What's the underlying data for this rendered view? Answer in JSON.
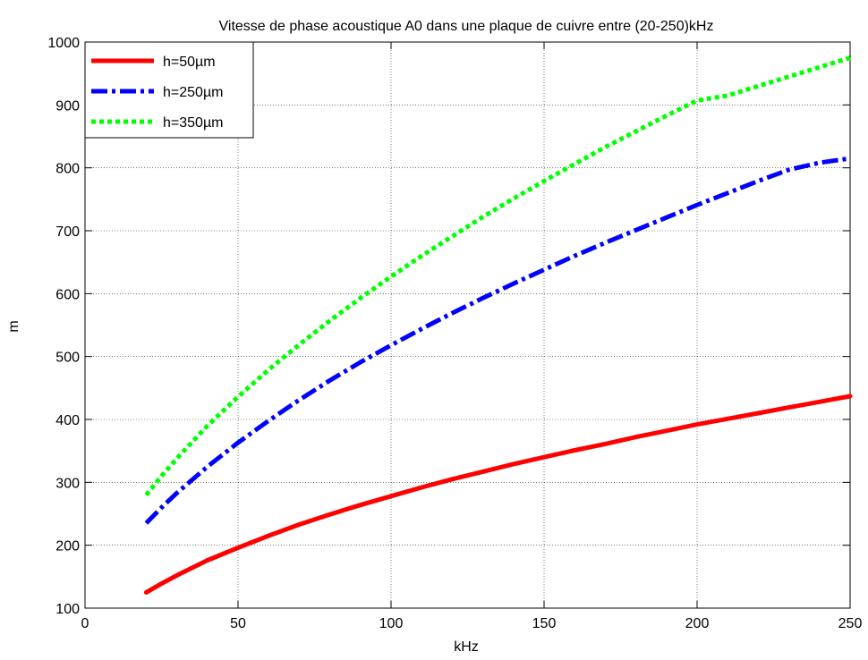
{
  "chart_data": {
    "type": "line",
    "title": "Vitesse de phase acoustique A0 dans une plaque de cuivre entre (20-250)kHz",
    "xlabel": "kHz",
    "ylabel": "m",
    "xlim": [
      0,
      250
    ],
    "ylim": [
      100,
      1000
    ],
    "xticks": [
      0,
      50,
      100,
      150,
      200,
      250
    ],
    "yticks": [
      100,
      200,
      300,
      400,
      500,
      600,
      700,
      800,
      900,
      1000
    ],
    "grid": true,
    "legend_position": "top-left",
    "series": [
      {
        "name": "h=50µm",
        "color": "#ff0000",
        "style": "solid",
        "x": [
          20,
          25,
          30,
          40,
          50,
          60,
          70,
          80,
          90,
          100,
          110,
          120,
          130,
          140,
          150,
          160,
          170,
          180,
          190,
          200,
          210,
          220,
          230,
          240,
          250
        ],
        "y": [
          125,
          139,
          152,
          176,
          196,
          215,
          233,
          249,
          264,
          278,
          292,
          305,
          317,
          329,
          340,
          351,
          361,
          372,
          382,
          392,
          401,
          410,
          419,
          428,
          437
        ]
      },
      {
        "name": "h=250µm",
        "color": "#0000ff",
        "style": "dashdot",
        "x": [
          20,
          25,
          30,
          40,
          50,
          60,
          70,
          80,
          90,
          100,
          110,
          120,
          130,
          140,
          150,
          160,
          170,
          180,
          190,
          200,
          210,
          220,
          230,
          240,
          250
        ],
        "y": [
          235,
          260,
          283,
          325,
          363,
          398,
          431,
          462,
          491,
          518,
          544,
          569,
          593,
          616,
          638,
          660,
          681,
          701,
          721,
          741,
          760,
          779,
          797,
          808,
          815
        ]
      },
      {
        "name": "h=350µm",
        "color": "#00ff00",
        "style": "dotted",
        "x": [
          20,
          25,
          30,
          40,
          50,
          60,
          70,
          80,
          90,
          100,
          110,
          120,
          130,
          140,
          150,
          160,
          170,
          180,
          190,
          200,
          210,
          220,
          230,
          240,
          250
        ],
        "y": [
          280,
          310,
          338,
          390,
          436,
          479,
          519,
          557,
          593,
          627,
          660,
          691,
          722,
          751,
          779,
          806,
          833,
          858,
          883,
          907,
          915,
          930,
          945,
          960,
          975
        ]
      }
    ]
  }
}
